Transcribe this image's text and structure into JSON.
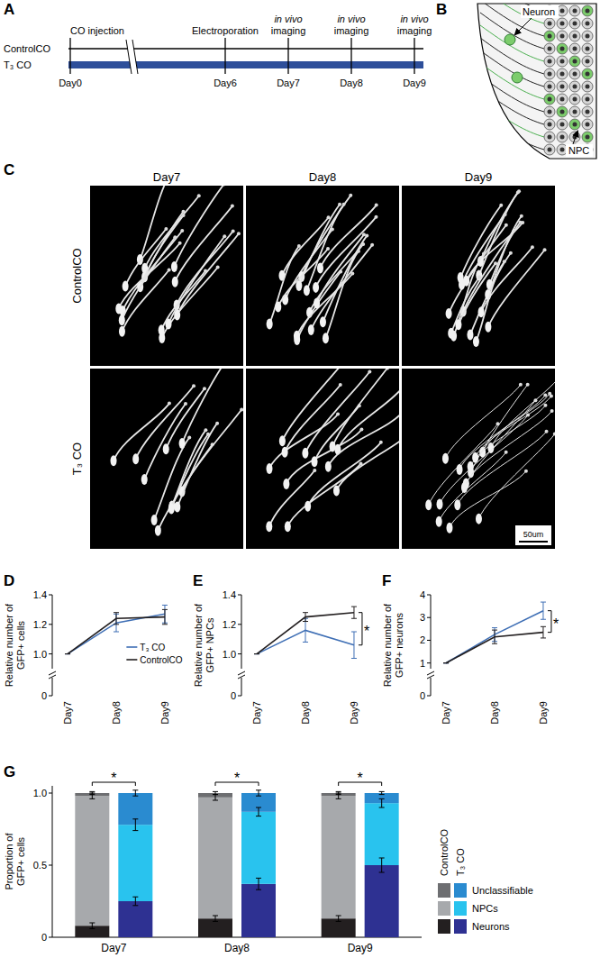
{
  "timeline": {
    "label": "A",
    "rows": [
      "ControlCO",
      "T₃ CO"
    ],
    "days": [
      "Day0",
      "Day6",
      "Day7",
      "Day8",
      "Day9"
    ],
    "events": [
      [
        "CO injection"
      ],
      [
        "Electroporation"
      ],
      [
        "in vivo",
        "imaging"
      ],
      [
        "in vivo",
        "imaging"
      ],
      [
        "in vivo",
        "imaging"
      ]
    ]
  },
  "schematic": {
    "label": "B",
    "neuron": "Neuron",
    "npc": "NPC"
  },
  "images": {
    "label": "C",
    "columns": [
      "Day7",
      "Day8",
      "Day9"
    ],
    "rows": [
      "ControlCO",
      "T₃ CO"
    ],
    "scale_bar": "50um"
  },
  "chart_data": [
    {
      "panel": "D",
      "type": "line",
      "y_label": [
        "Relative number of",
        "GFP+ cells"
      ],
      "categories": [
        "Day7",
        "Day8",
        "Day9"
      ],
      "ylim": [
        0.9,
        1.4
      ],
      "yticks": [
        {
          "value": 1,
          "label": "1.0"
        },
        1.2,
        1.4
      ],
      "y_break_tick": 0,
      "legend": "bottom-right",
      "series": [
        {
          "name": "T₃ CO",
          "color": "#3f6fb5",
          "values": [
            1,
            1.21,
            1.27
          ],
          "errors": [
            0,
            0.06,
            0.06
          ]
        },
        {
          "name": "ControlCO",
          "color": "#231f20",
          "values": [
            1,
            1.24,
            1.25
          ],
          "errors": [
            0,
            0.04,
            0.05
          ]
        }
      ]
    },
    {
      "panel": "E",
      "type": "line",
      "y_label": [
        "Relative number of",
        "GFP+ NPCs"
      ],
      "categories": [
        "Day7",
        "Day8",
        "Day9"
      ],
      "ylim": [
        0.9,
        1.4
      ],
      "yticks": [
        {
          "value": 1,
          "label": "1.0"
        },
        1.2,
        1.4
      ],
      "y_break_tick": 0,
      "series": [
        {
          "name": "T₃ CO",
          "color": "#3f6fb5",
          "values": [
            1,
            1.16,
            1.06
          ],
          "errors": [
            0,
            0.08,
            0.09
          ]
        },
        {
          "name": "ControlCO",
          "color": "#231f20",
          "values": [
            1,
            1.25,
            1.28
          ],
          "errors": [
            0,
            0.03,
            0.04
          ]
        }
      ],
      "annotations": [
        {
          "text": "*",
          "category": "Day9"
        }
      ]
    },
    {
      "panel": "F",
      "type": "line",
      "y_label": [
        "Relative number of",
        "GFP+ neurons"
      ],
      "categories": [
        "Day7",
        "Day8",
        "Day9"
      ],
      "ylim": [
        0.75,
        4
      ],
      "yticks": [
        1,
        2,
        3,
        4
      ],
      "y_break_tick": 0,
      "series": [
        {
          "name": "T₃ CO",
          "color": "#3f6fb5",
          "values": [
            1,
            2.25,
            3.3
          ],
          "errors": [
            0,
            0.3,
            0.38
          ]
        },
        {
          "name": "ControlCO",
          "color": "#231f20",
          "values": [
            1,
            2.15,
            2.35
          ],
          "errors": [
            0,
            0.3,
            0.25
          ]
        }
      ],
      "annotations": [
        {
          "text": "*",
          "category": "Day9"
        }
      ]
    },
    {
      "panel": "G",
      "type": "bar",
      "stacked": true,
      "y_label": [
        "Proportion of",
        "GFP+ cells"
      ],
      "categories": [
        "Day7",
        "Day8",
        "Day9"
      ],
      "groups": [
        "ControlCO",
        "T₃ CO"
      ],
      "ylim": [
        0,
        1.05
      ],
      "yticks": [
        0,
        0.5,
        {
          "value": 1,
          "label": "1.0"
        }
      ],
      "legend": "right",
      "series": [
        {
          "name": "Neurons",
          "colors": [
            "#231f20",
            "#2e3192"
          ],
          "values": [
            [
              0.08,
              0.25
            ],
            [
              0.13,
              0.37
            ],
            [
              0.13,
              0.5
            ]
          ],
          "errors": [
            [
              0.02,
              0.03
            ],
            [
              0.02,
              0.04
            ],
            [
              0.02,
              0.05
            ]
          ]
        },
        {
          "name": "NPCs",
          "colors": [
            "#a7a9ac",
            "#29c3ee"
          ],
          "values": [
            [
              0.9,
              0.53
            ],
            [
              0.84,
              0.5
            ],
            [
              0.85,
              0.43
            ]
          ],
          "errors": [
            [
              0.02,
              0.04
            ],
            [
              0.02,
              0.03
            ],
            [
              0.02,
              0.03
            ]
          ]
        },
        {
          "name": "Unclassifiable",
          "colors": [
            "#6d6e71",
            "#2a8bd0"
          ],
          "values": [
            [
              0.02,
              0.22
            ],
            [
              0.03,
              0.13
            ],
            [
              0.02,
              0.07
            ]
          ],
          "errors": [
            [
              0.01,
              0.02
            ],
            [
              0.01,
              0.02
            ],
            [
              0.01,
              0.01
            ]
          ]
        }
      ],
      "annotations": [
        {
          "text": "*",
          "category": "Day7"
        },
        {
          "text": "*",
          "category": "Day8"
        },
        {
          "text": "*",
          "category": "Day9"
        }
      ]
    }
  ]
}
